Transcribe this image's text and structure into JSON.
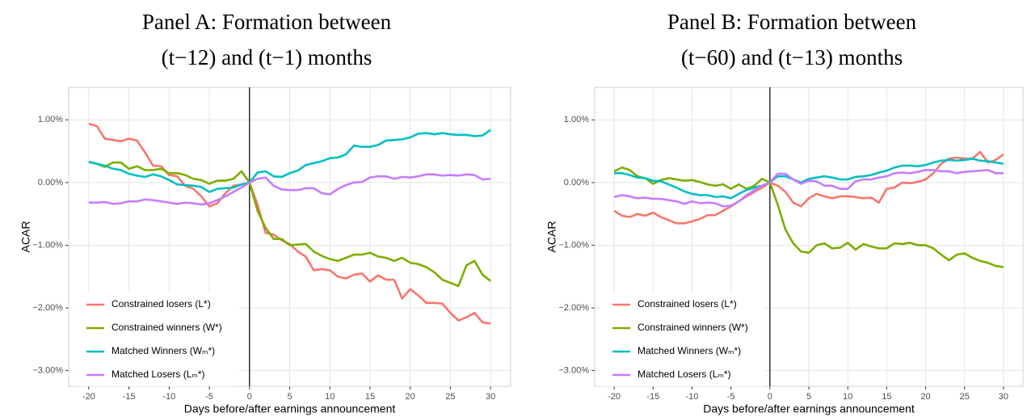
{
  "chart_data": [
    {
      "type": "line",
      "title": [
        "Panel A: Formation between",
        "(t−12) and (t−1) months"
      ],
      "xlabel": "Days before/after earnings announcement",
      "ylabel": "ACAR",
      "x": [
        -20,
        -19,
        -18,
        -17,
        -16,
        -15,
        -14,
        -13,
        -12,
        -11,
        -10,
        -9,
        -8,
        -7,
        -6,
        -5,
        -4,
        -3,
        -2,
        -1,
        0,
        1,
        2,
        3,
        4,
        5,
        6,
        7,
        8,
        9,
        10,
        11,
        12,
        13,
        14,
        15,
        16,
        17,
        18,
        19,
        20,
        21,
        22,
        23,
        24,
        25,
        26,
        27,
        28,
        29,
        30
      ],
      "xlim": [
        -22.5,
        32.5
      ],
      "xticks": [
        -20,
        -15,
        -10,
        -5,
        0,
        5,
        10,
        15,
        20,
        25,
        30
      ],
      "ylim": [
        -3.25,
        1.52
      ],
      "yticks": [
        {
          "value": -3,
          "label": "−3.00%"
        },
        {
          "value": -2,
          "label": "−2.00%"
        },
        {
          "value": -1,
          "label": "−1.00%"
        },
        {
          "value": 0,
          "label": "0.00%"
        },
        {
          "value": 1,
          "label": "1.00%"
        }
      ],
      "grid": true,
      "vline": 0,
      "legend": "bottom-left",
      "series": [
        {
          "name": "Constrained losers (L*)",
          "color": "#F8766D",
          "values": [
            0.94,
            0.9,
            0.7,
            0.68,
            0.66,
            0.7,
            0.67,
            0.48,
            0.27,
            0.26,
            0.12,
            0.1,
            -0.05,
            -0.1,
            -0.22,
            -0.38,
            -0.33,
            -0.17,
            -0.05,
            -0.03,
            0,
            -0.35,
            -0.8,
            -0.83,
            -0.92,
            -0.98,
            -1.1,
            -1.18,
            -1.4,
            -1.38,
            -1.4,
            -1.5,
            -1.53,
            -1.47,
            -1.45,
            -1.58,
            -1.48,
            -1.55,
            -1.55,
            -1.85,
            -1.7,
            -1.8,
            -1.92,
            -1.92,
            -1.93,
            -2.08,
            -2.2,
            -2.15,
            -2.08,
            -2.23,
            -2.25
          ]
        },
        {
          "name": "Constrained winners (W*)",
          "color": "#7CAE00",
          "values": [
            0.33,
            0.3,
            0.25,
            0.32,
            0.32,
            0.22,
            0.26,
            0.2,
            0.2,
            0.22,
            0.15,
            0.15,
            0.12,
            0.06,
            0.04,
            -0.02,
            0.03,
            0.03,
            0.06,
            0.18,
            0,
            -0.45,
            -0.72,
            -0.9,
            -0.9,
            -1.0,
            -0.99,
            -0.98,
            -1.1,
            -1.17,
            -1.22,
            -1.25,
            -1.2,
            -1.15,
            -1.15,
            -1.12,
            -1.18,
            -1.2,
            -1.25,
            -1.2,
            -1.28,
            -1.3,
            -1.35,
            -1.43,
            -1.55,
            -1.6,
            -1.65,
            -1.32,
            -1.25,
            -1.47,
            -1.57
          ]
        },
        {
          "name": "Matched Winners (Wₘ*)",
          "color": "#00BFC4",
          "values": [
            0.33,
            0.3,
            0.27,
            0.22,
            0.2,
            0.14,
            0.11,
            0.09,
            0.13,
            0.1,
            0.04,
            -0.03,
            -0.04,
            -0.05,
            -0.07,
            -0.15,
            -0.1,
            -0.09,
            -0.08,
            -0.03,
            0,
            0.16,
            0.18,
            0.1,
            0.09,
            0.15,
            0.19,
            0.28,
            0.31,
            0.34,
            0.39,
            0.4,
            0.45,
            0.59,
            0.57,
            0.57,
            0.6,
            0.67,
            0.68,
            0.69,
            0.72,
            0.78,
            0.79,
            0.77,
            0.79,
            0.77,
            0.76,
            0.76,
            0.74,
            0.75,
            0.84
          ]
        },
        {
          "name": "Matched Losers (Lₘ*)",
          "color": "#C77CFF",
          "values": [
            -0.32,
            -0.32,
            -0.31,
            -0.34,
            -0.33,
            -0.3,
            -0.3,
            -0.27,
            -0.28,
            -0.3,
            -0.32,
            -0.34,
            -0.32,
            -0.33,
            -0.35,
            -0.33,
            -0.28,
            -0.22,
            -0.15,
            -0.08,
            0,
            0.06,
            0.08,
            -0.05,
            -0.11,
            -0.12,
            -0.12,
            -0.09,
            -0.09,
            -0.17,
            -0.19,
            -0.1,
            -0.04,
            0.0,
            0.01,
            0.08,
            0.1,
            0.1,
            0.06,
            0.09,
            0.08,
            0.1,
            0.13,
            0.13,
            0.11,
            0.12,
            0.11,
            0.13,
            0.12,
            0.05,
            0.06
          ]
        }
      ]
    },
    {
      "type": "line",
      "title": [
        "Panel B: Formation between",
        "(t−60) and (t−13) months"
      ],
      "xlabel": "Days before/after earnings announcement",
      "ylabel": "ACAR",
      "x": [
        -20,
        -19,
        -18,
        -17,
        -16,
        -15,
        -14,
        -13,
        -12,
        -11,
        -10,
        -9,
        -8,
        -7,
        -6,
        -5,
        -4,
        -3,
        -2,
        -1,
        0,
        1,
        2,
        3,
        4,
        5,
        6,
        7,
        8,
        9,
        10,
        11,
        12,
        13,
        14,
        15,
        16,
        17,
        18,
        19,
        20,
        21,
        22,
        23,
        24,
        25,
        26,
        27,
        28,
        29,
        30
      ],
      "xlim": [
        -22.5,
        32.5
      ],
      "xticks": [
        -20,
        -15,
        -10,
        -5,
        0,
        5,
        10,
        15,
        20,
        25,
        30
      ],
      "ylim": [
        -3.25,
        1.52
      ],
      "yticks": [
        {
          "value": -3,
          "label": "−3.00%"
        },
        {
          "value": -2,
          "label": "−2.00%"
        },
        {
          "value": -1,
          "label": "−1.00%"
        },
        {
          "value": 0,
          "label": "0.00%"
        },
        {
          "value": 1,
          "label": "1.00%"
        }
      ],
      "grid": true,
      "vline": 0,
      "legend": "bottom-left",
      "series": [
        {
          "name": "Constrained losers (L*)",
          "color": "#F8766D",
          "values": [
            -0.45,
            -0.53,
            -0.55,
            -0.5,
            -0.53,
            -0.48,
            -0.55,
            -0.6,
            -0.65,
            -0.65,
            -0.62,
            -0.58,
            -0.52,
            -0.52,
            -0.45,
            -0.38,
            -0.3,
            -0.22,
            -0.15,
            -0.08,
            0,
            -0.05,
            -0.15,
            -0.32,
            -0.38,
            -0.25,
            -0.18,
            -0.22,
            -0.25,
            -0.22,
            -0.22,
            -0.23,
            -0.25,
            -0.24,
            -0.32,
            -0.1,
            -0.08,
            0.0,
            -0.01,
            0.01,
            0.05,
            0.15,
            0.3,
            0.38,
            0.4,
            0.38,
            0.38,
            0.49,
            0.32,
            0.36,
            0.45
          ]
        },
        {
          "name": "Constrained winners (W*)",
          "color": "#7CAE00",
          "values": [
            0.18,
            0.24,
            0.2,
            0.1,
            0.07,
            -0.02,
            0.04,
            0.07,
            0.05,
            0.03,
            0.04,
            0.01,
            -0.03,
            -0.05,
            -0.03,
            -0.1,
            -0.03,
            -0.1,
            -0.05,
            0.06,
            0,
            -0.35,
            -0.75,
            -0.97,
            -1.1,
            -1.12,
            -1.0,
            -0.97,
            -1.05,
            -1.04,
            -0.96,
            -1.07,
            -0.98,
            -1.02,
            -1.05,
            -1.05,
            -0.97,
            -0.98,
            -0.96,
            -1.0,
            -1.0,
            -1.05,
            -1.15,
            -1.24,
            -1.15,
            -1.13,
            -1.2,
            -1.25,
            -1.28,
            -1.33,
            -1.35
          ]
        },
        {
          "name": "Matched Winners (Wₘ*)",
          "color": "#00BFC4",
          "values": [
            0.15,
            0.15,
            0.12,
            0.08,
            0.07,
            0.03,
            0.02,
            -0.03,
            -0.08,
            -0.14,
            -0.18,
            -0.2,
            -0.2,
            -0.23,
            -0.22,
            -0.25,
            -0.18,
            -0.12,
            -0.08,
            -0.05,
            0,
            0.1,
            0.1,
            0.05,
            0.0,
            0.06,
            0.08,
            0.1,
            0.08,
            0.05,
            0.05,
            0.09,
            0.1,
            0.12,
            0.16,
            0.19,
            0.24,
            0.27,
            0.27,
            0.26,
            0.28,
            0.32,
            0.35,
            0.36,
            0.35,
            0.36,
            0.38,
            0.35,
            0.34,
            0.32,
            0.3
          ]
        },
        {
          "name": "Matched Losers (Lₘ*)",
          "color": "#C77CFF",
          "values": [
            -0.23,
            -0.2,
            -0.22,
            -0.25,
            -0.24,
            -0.26,
            -0.26,
            -0.28,
            -0.3,
            -0.34,
            -0.3,
            -0.33,
            -0.32,
            -0.33,
            -0.38,
            -0.37,
            -0.3,
            -0.2,
            -0.12,
            -0.05,
            0,
            0.14,
            0.14,
            0.05,
            -0.02,
            0.03,
            0.02,
            -0.05,
            -0.05,
            -0.1,
            -0.1,
            0.02,
            0.05,
            0.05,
            0.08,
            0.1,
            0.15,
            0.16,
            0.15,
            0.17,
            0.2,
            0.2,
            0.18,
            0.18,
            0.15,
            0.17,
            0.18,
            0.19,
            0.2,
            0.15,
            0.15
          ]
        }
      ]
    }
  ]
}
